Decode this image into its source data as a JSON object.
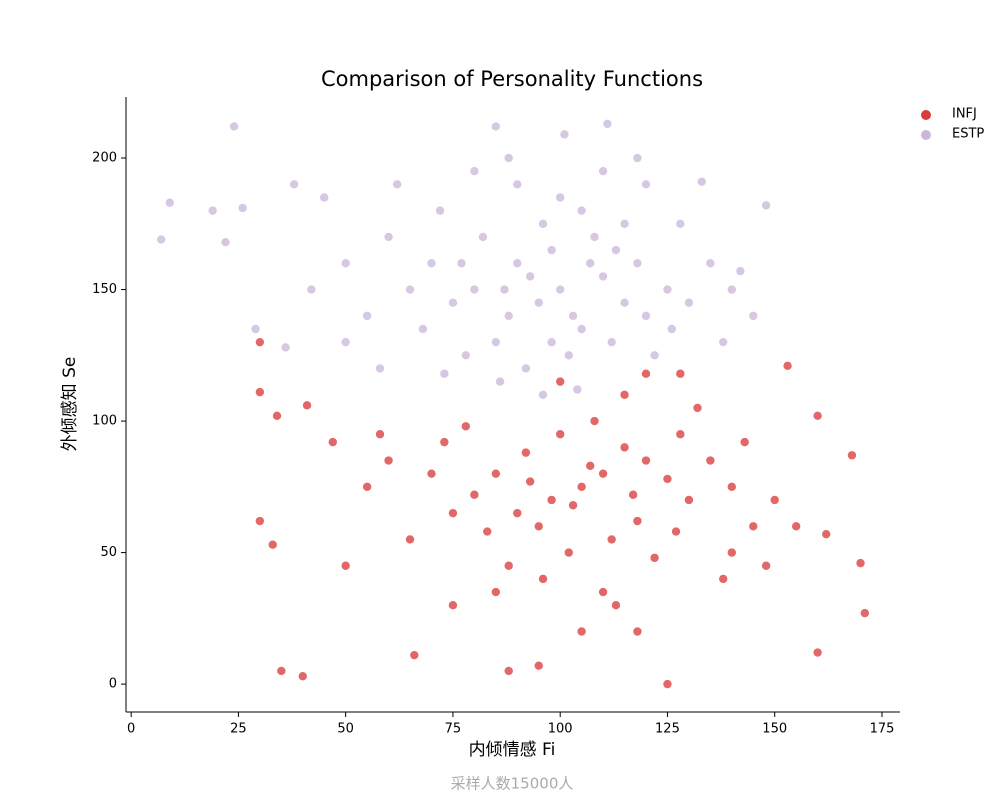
{
  "chart_data": {
    "type": "scatter",
    "title": "Comparison of Personality Functions",
    "x_label": "内倾情感 Fi",
    "y_label": "外倾感知 Se",
    "annotation": "采样人数15000人",
    "xlim": [
      -1.2,
      179.2
    ],
    "xticks": [
      0,
      25,
      50,
      75,
      100,
      125,
      150,
      175
    ],
    "ylim": [
      -10.6,
      223.2
    ],
    "yticks": [
      0,
      50,
      100,
      150,
      200
    ],
    "grid": false,
    "legend": "upper right",
    "series": [
      {
        "name": "INFJ",
        "color": "#d62728",
        "x": [
          30,
          30,
          34,
          41,
          30,
          33,
          35,
          40,
          125,
          171,
          170,
          168,
          160,
          160,
          95,
          88,
          105,
          110,
          98,
          115,
          90,
          120,
          100,
          95,
          112,
          125,
          85,
          108,
          118,
          130,
          80,
          92,
          102,
          135,
          75,
          140,
          88,
          115,
          122,
          70,
          145,
          128,
          96,
          110,
          150,
          65,
          60,
          55,
          78,
          132,
          140,
          100,
          120,
          113,
          85,
          155,
          50,
          47,
          162,
          153,
          138,
          75,
          105,
          128,
          118,
          103,
          107,
          93,
          117,
          127,
          83,
          73,
          143,
          148,
          66,
          58
        ],
        "values": [
          130,
          111,
          102,
          106,
          62,
          53,
          5,
          3,
          0,
          27,
          46,
          87,
          102,
          12,
          7,
          5,
          75,
          80,
          70,
          90,
          65,
          85,
          95,
          60,
          55,
          78,
          80,
          100,
          62,
          70,
          72,
          88,
          50,
          85,
          65,
          75,
          45,
          110,
          48,
          80,
          60,
          95,
          40,
          35,
          70,
          55,
          85,
          75,
          98,
          105,
          50,
          115,
          118,
          30,
          35,
          60,
          45,
          92,
          57,
          121,
          40,
          30,
          20,
          118,
          20,
          68,
          83,
          77,
          72,
          58,
          58,
          92,
          92,
          45,
          11,
          95
        ]
      },
      {
        "name": "ESTP",
        "color": "#c5b0d5",
        "x": [
          7,
          9,
          24,
          19,
          22,
          26,
          29,
          36,
          38,
          111,
          148,
          85,
          101,
          133,
          142,
          118,
          95,
          100,
          88,
          105,
          90,
          110,
          85,
          98,
          115,
          80,
          102,
          92,
          120,
          75,
          108,
          82,
          118,
          125,
          70,
          96,
          112,
          86,
          130,
          65,
          100,
          78,
          122,
          60,
          135,
          90,
          105,
          55,
          50,
          140,
          115,
          72,
          88,
          110,
          58,
          45,
          128,
          96,
          104,
          80,
          68,
          138,
          62,
          50,
          42,
          120,
          93,
          103,
          87,
          113,
          77,
          126,
          98,
          107,
          73,
          145
        ],
        "values": [
          169,
          183,
          212,
          180,
          168,
          181,
          135,
          128,
          190,
          213,
          182,
          212,
          209,
          191,
          157,
          200,
          145,
          150,
          140,
          135,
          160,
          155,
          130,
          165,
          145,
          150,
          125,
          120,
          140,
          145,
          170,
          170,
          160,
          150,
          160,
          175,
          130,
          115,
          145,
          150,
          185,
          125,
          125,
          170,
          160,
          190,
          180,
          140,
          160,
          150,
          175,
          180,
          200,
          195,
          120,
          185,
          175,
          110,
          112,
          195,
          135,
          130,
          190,
          130,
          150,
          190,
          155,
          140,
          150,
          165,
          160,
          135,
          130,
          160,
          118,
          140
        ]
      }
    ]
  }
}
